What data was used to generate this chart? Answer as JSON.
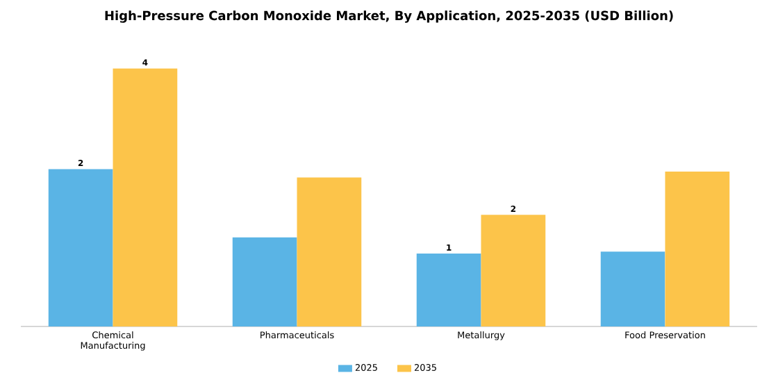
{
  "chart_data": {
    "type": "bar",
    "title": "High-Pressure Carbon Monoxide Market, By Application, 2025-2035 (USD Billion)",
    "legend": "bottom",
    "categories": [
      "Chemical Manufacturing",
      "Pharmaceuticals",
      "Metallurgy",
      "Food Preservation"
    ],
    "series": [
      {
        "name": "2025",
        "color": "#5ab4e5",
        "values": [
          2.44,
          1.38,
          1.13,
          1.16
        ],
        "value_labels": [
          "2",
          null,
          "1",
          null
        ]
      },
      {
        "name": "2035",
        "color": "#fcc44a",
        "values": [
          4,
          2.31,
          1.73,
          2.4
        ],
        "value_labels": [
          "4",
          null,
          "2",
          null
        ]
      }
    ]
  }
}
